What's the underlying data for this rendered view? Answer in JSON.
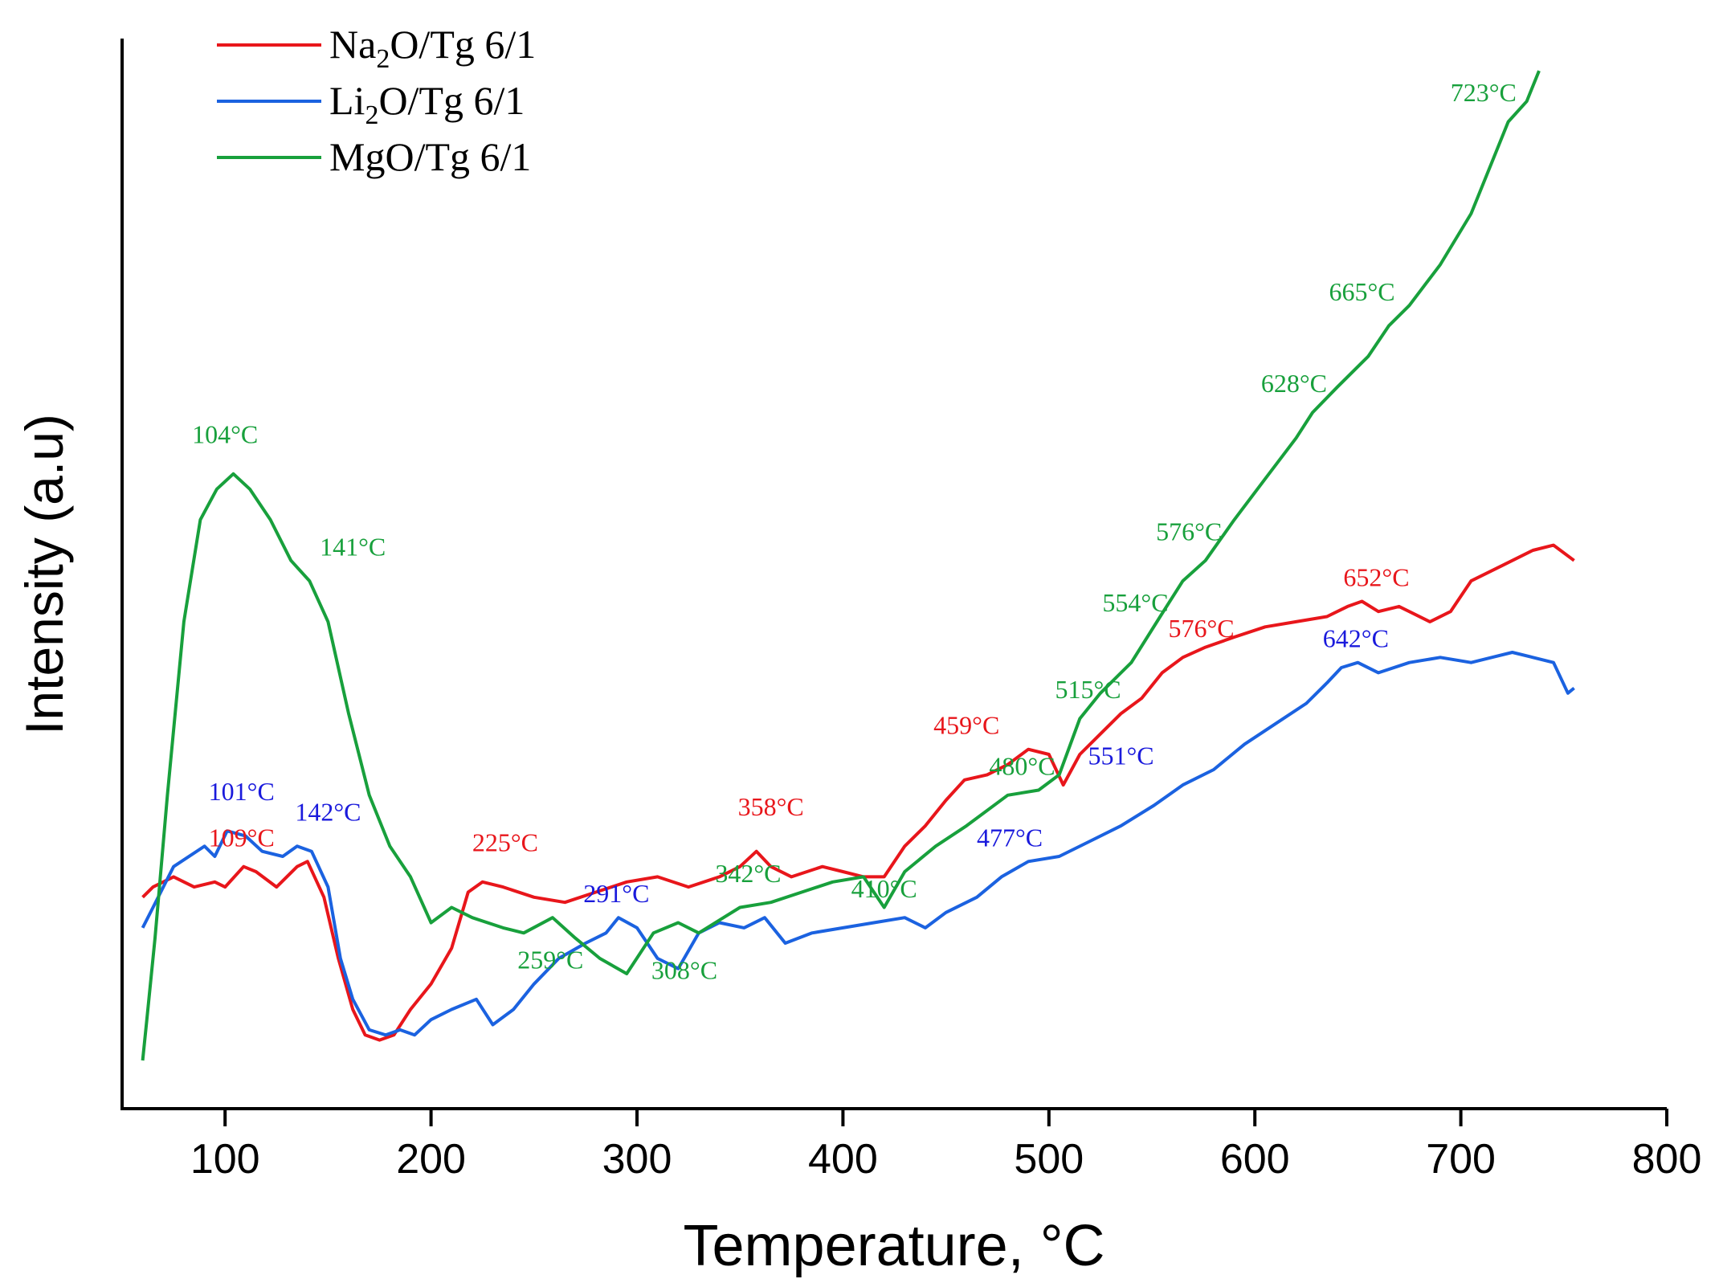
{
  "chart_data": {
    "type": "line",
    "title": "",
    "xlabel": "Temperature, °C",
    "ylabel": "Intensity (a.u)",
    "xlim": [
      50,
      800
    ],
    "ylim": [
      0,
      1.0
    ],
    "xticks": [
      100,
      200,
      300,
      400,
      500,
      600,
      700,
      800
    ],
    "xtick_labels": [
      "100",
      "200",
      "300",
      "400",
      "500",
      "600",
      "700",
      "800"
    ],
    "ytick_labels": [],
    "grid": false,
    "legend_position": "top-left",
    "series": [
      {
        "name": "Na2O/Tg 6/1",
        "legend": {
          "main": "Na",
          "sub": "2",
          "rest": "O/Tg 6/1"
        },
        "color": "#e8161b",
        "points": [
          [
            60,
            0.16
          ],
          [
            65,
            0.17
          ],
          [
            75,
            0.18
          ],
          [
            85,
            0.17
          ],
          [
            95,
            0.175
          ],
          [
            100,
            0.17
          ],
          [
            109,
            0.19
          ],
          [
            115,
            0.185
          ],
          [
            125,
            0.17
          ],
          [
            135,
            0.19
          ],
          [
            140,
            0.195
          ],
          [
            148,
            0.16
          ],
          [
            155,
            0.1
          ],
          [
            162,
            0.05
          ],
          [
            168,
            0.025
          ],
          [
            175,
            0.02
          ],
          [
            182,
            0.025
          ],
          [
            190,
            0.05
          ],
          [
            200,
            0.075
          ],
          [
            210,
            0.11
          ],
          [
            218,
            0.165
          ],
          [
            225,
            0.175
          ],
          [
            235,
            0.17
          ],
          [
            250,
            0.16
          ],
          [
            265,
            0.155
          ],
          [
            280,
            0.165
          ],
          [
            295,
            0.175
          ],
          [
            310,
            0.18
          ],
          [
            325,
            0.17
          ],
          [
            340,
            0.18
          ],
          [
            350,
            0.19
          ],
          [
            358,
            0.205
          ],
          [
            365,
            0.19
          ],
          [
            375,
            0.18
          ],
          [
            390,
            0.19
          ],
          [
            400,
            0.185
          ],
          [
            410,
            0.18
          ],
          [
            420,
            0.18
          ],
          [
            430,
            0.21
          ],
          [
            440,
            0.23
          ],
          [
            450,
            0.255
          ],
          [
            459,
            0.275
          ],
          [
            470,
            0.28
          ],
          [
            480,
            0.29
          ],
          [
            490,
            0.305
          ],
          [
            500,
            0.3
          ],
          [
            507,
            0.27
          ],
          [
            515,
            0.3
          ],
          [
            525,
            0.32
          ],
          [
            535,
            0.34
          ],
          [
            545,
            0.355
          ],
          [
            555,
            0.38
          ],
          [
            565,
            0.395
          ],
          [
            576,
            0.405
          ],
          [
            590,
            0.415
          ],
          [
            605,
            0.425
          ],
          [
            620,
            0.43
          ],
          [
            635,
            0.435
          ],
          [
            645,
            0.445
          ],
          [
            652,
            0.45
          ],
          [
            660,
            0.44
          ],
          [
            670,
            0.445
          ],
          [
            685,
            0.43
          ],
          [
            695,
            0.44
          ],
          [
            705,
            0.47
          ],
          [
            720,
            0.485
          ],
          [
            735,
            0.5
          ],
          [
            745,
            0.505
          ],
          [
            755,
            0.49
          ]
        ]
      },
      {
        "name": "Li2O/Tg 6/1",
        "legend": {
          "main": "Li",
          "sub": "2",
          "rest": "O/Tg 6/1"
        },
        "color": "#1b62e0",
        "points": [
          [
            60,
            0.13
          ],
          [
            65,
            0.15
          ],
          [
            75,
            0.19
          ],
          [
            90,
            0.21
          ],
          [
            95,
            0.2
          ],
          [
            101,
            0.225
          ],
          [
            110,
            0.22
          ],
          [
            118,
            0.205
          ],
          [
            128,
            0.2
          ],
          [
            135,
            0.21
          ],
          [
            142,
            0.205
          ],
          [
            150,
            0.17
          ],
          [
            156,
            0.1
          ],
          [
            162,
            0.06
          ],
          [
            170,
            0.03
          ],
          [
            178,
            0.025
          ],
          [
            185,
            0.03
          ],
          [
            192,
            0.025
          ],
          [
            200,
            0.04
          ],
          [
            210,
            0.05
          ],
          [
            222,
            0.06
          ],
          [
            230,
            0.035
          ],
          [
            240,
            0.05
          ],
          [
            250,
            0.075
          ],
          [
            262,
            0.1
          ],
          [
            275,
            0.115
          ],
          [
            285,
            0.125
          ],
          [
            291,
            0.14
          ],
          [
            300,
            0.13
          ],
          [
            310,
            0.1
          ],
          [
            320,
            0.09
          ],
          [
            330,
            0.125
          ],
          [
            340,
            0.135
          ],
          [
            352,
            0.13
          ],
          [
            362,
            0.14
          ],
          [
            372,
            0.115
          ],
          [
            385,
            0.125
          ],
          [
            400,
            0.13
          ],
          [
            415,
            0.135
          ],
          [
            430,
            0.14
          ],
          [
            440,
            0.13
          ],
          [
            450,
            0.145
          ],
          [
            465,
            0.16
          ],
          [
            477,
            0.18
          ],
          [
            490,
            0.195
          ],
          [
            505,
            0.2
          ],
          [
            520,
            0.215
          ],
          [
            535,
            0.23
          ],
          [
            551,
            0.25
          ],
          [
            565,
            0.27
          ],
          [
            580,
            0.285
          ],
          [
            595,
            0.31
          ],
          [
            610,
            0.33
          ],
          [
            625,
            0.35
          ],
          [
            635,
            0.37
          ],
          [
            642,
            0.385
          ],
          [
            650,
            0.39
          ],
          [
            660,
            0.38
          ],
          [
            675,
            0.39
          ],
          [
            690,
            0.395
          ],
          [
            705,
            0.39
          ],
          [
            715,
            0.395
          ],
          [
            725,
            0.4
          ],
          [
            735,
            0.395
          ],
          [
            745,
            0.39
          ],
          [
            752,
            0.36
          ],
          [
            755,
            0.365
          ]
        ]
      },
      {
        "name": "MgO/Tg 6/1",
        "legend": {
          "main": "MgO",
          "sub": "",
          "rest": "/Tg 6/1"
        },
        "color": "#18a03c",
        "points": [
          [
            60,
            0.0
          ],
          [
            62,
            0.04
          ],
          [
            66,
            0.12
          ],
          [
            72,
            0.26
          ],
          [
            80,
            0.43
          ],
          [
            88,
            0.53
          ],
          [
            96,
            0.56
          ],
          [
            104,
            0.575
          ],
          [
            112,
            0.56
          ],
          [
            122,
            0.53
          ],
          [
            132,
            0.49
          ],
          [
            141,
            0.47
          ],
          [
            150,
            0.43
          ],
          [
            160,
            0.34
          ],
          [
            170,
            0.26
          ],
          [
            180,
            0.21
          ],
          [
            190,
            0.18
          ],
          [
            200,
            0.135
          ],
          [
            210,
            0.15
          ],
          [
            220,
            0.14
          ],
          [
            235,
            0.13
          ],
          [
            245,
            0.125
          ],
          [
            259,
            0.14
          ],
          [
            270,
            0.12
          ],
          [
            282,
            0.1
          ],
          [
            295,
            0.085
          ],
          [
            308,
            0.125
          ],
          [
            320,
            0.135
          ],
          [
            330,
            0.125
          ],
          [
            342,
            0.14
          ],
          [
            350,
            0.15
          ],
          [
            365,
            0.155
          ],
          [
            380,
            0.165
          ],
          [
            395,
            0.175
          ],
          [
            410,
            0.18
          ],
          [
            420,
            0.15
          ],
          [
            430,
            0.185
          ],
          [
            445,
            0.21
          ],
          [
            460,
            0.23
          ],
          [
            480,
            0.26
          ],
          [
            495,
            0.265
          ],
          [
            505,
            0.28
          ],
          [
            515,
            0.335
          ],
          [
            525,
            0.36
          ],
          [
            540,
            0.39
          ],
          [
            554,
            0.435
          ],
          [
            565,
            0.47
          ],
          [
            576,
            0.49
          ],
          [
            590,
            0.53
          ],
          [
            605,
            0.57
          ],
          [
            620,
            0.61
          ],
          [
            628,
            0.635
          ],
          [
            640,
            0.66
          ],
          [
            655,
            0.69
          ],
          [
            665,
            0.72
          ],
          [
            675,
            0.74
          ],
          [
            690,
            0.78
          ],
          [
            705,
            0.83
          ],
          [
            715,
            0.88
          ],
          [
            723,
            0.92
          ],
          [
            732,
            0.94
          ],
          [
            738,
            0.97
          ]
        ]
      }
    ],
    "annotations": [
      {
        "text": "104°C",
        "series": "MgO/Tg 6/1",
        "color": "#18a03c",
        "x": 100,
        "y": 0.605
      },
      {
        "text": "141°C",
        "series": "MgO/Tg 6/1",
        "color": "#18a03c",
        "x": 162,
        "y": 0.495
      },
      {
        "text": "259°C",
        "series": "MgO/Tg 6/1",
        "color": "#18a03c",
        "x": 258,
        "y": 0.09
      },
      {
        "text": "308°C",
        "series": "MgO/Tg 6/1",
        "color": "#18a03c",
        "x": 323,
        "y": 0.08
      },
      {
        "text": "342°C",
        "series": "MgO/Tg 6/1",
        "color": "#18a03c",
        "x": 354,
        "y": 0.175
      },
      {
        "text": "410°C",
        "series": "MgO/Tg 6/1",
        "color": "#18a03c",
        "x": 420,
        "y": 0.16
      },
      {
        "text": "480°C",
        "series": "MgO/Tg 6/1",
        "color": "#18a03c",
        "x": 487,
        "y": 0.28
      },
      {
        "text": "515°C",
        "series": "MgO/Tg 6/1",
        "color": "#18a03c",
        "x": 519,
        "y": 0.355
      },
      {
        "text": "554°C",
        "series": "MgO/Tg 6/1",
        "color": "#18a03c",
        "x": 542,
        "y": 0.44
      },
      {
        "text": "576°C",
        "series": "MgO/Tg 6/1",
        "color": "#18a03c",
        "x": 568,
        "y": 0.51
      },
      {
        "text": "628°C",
        "series": "MgO/Tg 6/1",
        "color": "#18a03c",
        "x": 619,
        "y": 0.655
      },
      {
        "text": "665°C",
        "series": "MgO/Tg 6/1",
        "color": "#18a03c",
        "x": 652,
        "y": 0.745
      },
      {
        "text": "723°C",
        "series": "MgO/Tg 6/1",
        "color": "#18a03c",
        "x": 711,
        "y": 0.94
      },
      {
        "text": "109°C",
        "series": "Na2O/Tg 6/1",
        "color": "#e8161b",
        "x": 108,
        "y": 0.21
      },
      {
        "text": "225°C",
        "series": "Na2O/Tg 6/1",
        "color": "#e8161b",
        "x": 236,
        "y": 0.205
      },
      {
        "text": "358°C",
        "series": "Na2O/Tg 6/1",
        "color": "#e8161b",
        "x": 365,
        "y": 0.24
      },
      {
        "text": "459°C",
        "series": "Na2O/Tg 6/1",
        "color": "#e8161b",
        "x": 460,
        "y": 0.32
      },
      {
        "text": "576°C",
        "series": "Na2O/Tg 6/1",
        "color": "#e8161b",
        "x": 574,
        "y": 0.415
      },
      {
        "text": "652°C",
        "series": "Na2O/Tg 6/1",
        "color": "#e8161b",
        "x": 659,
        "y": 0.465
      },
      {
        "text": "101°C",
        "series": "Li2O/Tg 6/1",
        "color": "#1a1adc",
        "x": 108,
        "y": 0.255
      },
      {
        "text": "142°C",
        "series": "Li2O/Tg 6/1",
        "color": "#1a1adc",
        "x": 150,
        "y": 0.235
      },
      {
        "text": "291°C",
        "series": "Li2O/Tg 6/1",
        "color": "#1a1adc",
        "x": 290,
        "y": 0.155
      },
      {
        "text": "477°C",
        "series": "Li2O/Tg 6/1",
        "color": "#1a1adc",
        "x": 481,
        "y": 0.21
      },
      {
        "text": "551°C",
        "series": "Li2O/Tg 6/1",
        "color": "#1a1adc",
        "x": 535,
        "y": 0.29
      },
      {
        "text": "642°C",
        "series": "Li2O/Tg 6/1",
        "color": "#1a1adc",
        "x": 649,
        "y": 0.405
      }
    ]
  }
}
